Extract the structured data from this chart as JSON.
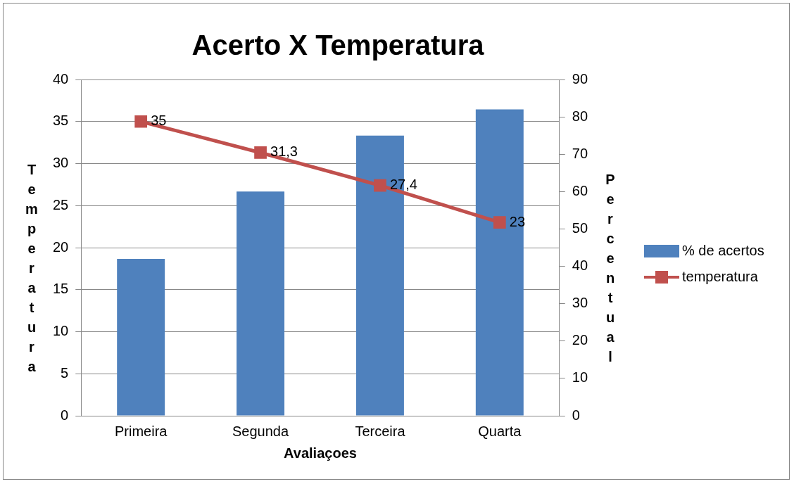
{
  "chart_data": {
    "type": "bar",
    "title": "Acerto X Temperatura",
    "xlabel": "Avaliaçoes",
    "ylabel": "Temperatura",
    "y2label": "Percentual",
    "categories": [
      "Primeira",
      "Segunda",
      "Terceira",
      "Quarta"
    ],
    "series": [
      {
        "name": "% de acertos",
        "axis": "y2",
        "color": "#4f81bd",
        "values": [
          42,
          60,
          75,
          82
        ]
      },
      {
        "name": "temperatura",
        "type": "line",
        "axis": "y",
        "color": "#c0504d",
        "values": [
          35,
          31.3,
          27.4,
          23
        ],
        "value_labels": [
          "35",
          "31,3",
          "27,4",
          "23"
        ]
      }
    ],
    "ylim": [
      0,
      40
    ],
    "yticks": [
      0,
      5,
      10,
      15,
      20,
      25,
      30,
      35,
      40
    ],
    "y2lim": [
      0,
      90
    ],
    "y2ticks": [
      0,
      10,
      20,
      30,
      40,
      50,
      60,
      70,
      80,
      90
    ],
    "grid": "y",
    "legend": "right",
    "marker": "square",
    "line_style": "solid"
  }
}
